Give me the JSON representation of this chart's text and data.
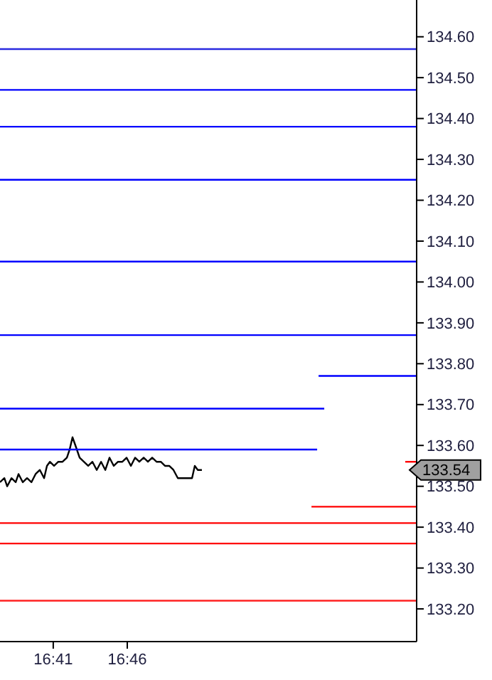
{
  "chart_data": {
    "type": "line",
    "x": [
      16.6233,
      16.6282,
      16.6314,
      16.6362,
      16.641,
      16.6442,
      16.649,
      16.6538,
      16.6587,
      16.6634,
      16.6682,
      16.673,
      16.6762,
      16.6795,
      16.6842,
      16.689,
      16.6938,
      16.6987,
      16.7018,
      16.705,
      16.7083,
      16.713,
      16.7178,
      16.7227,
      16.7275,
      16.7323,
      16.7372,
      16.742,
      16.7467,
      16.7515,
      16.7563,
      16.7612,
      16.766,
      16.7708,
      16.7755,
      16.7803,
      16.7852,
      16.79,
      16.7948,
      16.7997,
      16.8045,
      16.8092,
      16.814,
      16.8188,
      16.8237,
      16.8285,
      16.8333,
      16.8397,
      16.8428,
      16.8462,
      16.8508
    ],
    "series": [
      {
        "color": "#000000",
        "values": [
          133.51,
          133.52,
          133.5,
          133.52,
          133.51,
          133.53,
          133.51,
          133.52,
          133.51,
          133.53,
          133.54,
          133.52,
          133.55,
          133.56,
          133.55,
          133.56,
          133.56,
          133.57,
          133.59,
          133.62,
          133.6,
          133.57,
          133.56,
          133.55,
          133.56,
          133.54,
          133.56,
          133.54,
          133.57,
          133.55,
          133.56,
          133.56,
          133.57,
          133.55,
          133.57,
          133.56,
          133.57,
          133.56,
          133.57,
          133.56,
          133.56,
          133.55,
          133.55,
          133.54,
          133.52,
          133.52,
          133.52,
          133.52,
          133.55,
          133.54,
          133.54
        ]
      },
      {
        "type": "line",
        "color": "#0000ff",
        "x": [
          16.9823,
          17.0928
        ],
        "values": [
          133.77,
          133.77
        ]
      },
      {
        "type": "line",
        "color": "#0000ff",
        "x": [
          16.6233,
          16.9887
        ],
        "values": [
          133.69,
          133.69
        ]
      },
      {
        "type": "line",
        "color": "#0000ff",
        "x": [
          16.6233,
          16.9807
        ],
        "values": [
          133.59,
          133.59
        ]
      },
      {
        "type": "line",
        "color": "#ff0000",
        "x": [
          16.9743,
          17.0928
        ],
        "values": [
          133.45,
          133.45
        ]
      },
      {
        "type": "line",
        "color": "#ff0000",
        "x": [
          17.08,
          17.0928
        ],
        "values": [
          133.56,
          133.56
        ]
      }
    ],
    "ref_lines": [
      {
        "axis": "y",
        "value": 134.57,
        "color": "#2a2ae0"
      },
      {
        "axis": "y",
        "value": 134.47,
        "color": "#0000ff"
      },
      {
        "axis": "y",
        "value": 134.38,
        "color": "#0000ff"
      },
      {
        "axis": "y",
        "value": 134.25,
        "color": "#0000ff"
      },
      {
        "axis": "y",
        "value": 134.05,
        "color": "#0000ff"
      },
      {
        "axis": "y",
        "value": 133.87,
        "color": "#0000ff"
      },
      {
        "axis": "y",
        "value": 133.41,
        "color": "#ff0000"
      },
      {
        "axis": "y",
        "value": 133.36,
        "color": "#ff0000"
      },
      {
        "axis": "y",
        "value": 133.22,
        "color": "#ff2020"
      }
    ],
    "annotations": [
      "133.54"
    ],
    "xlim": [
      16.6233,
      17.0928
    ],
    "xticks": [
      {
        "value": 16.6833,
        "label": "16:41"
      },
      {
        "value": 16.7667,
        "label": "16:46"
      }
    ],
    "ylim": [
      133.12,
      134.69
    ],
    "yticks": [
      {
        "value": 133.2,
        "label": "133.20"
      },
      {
        "value": 133.3,
        "label": "133.30"
      },
      {
        "value": 133.4,
        "label": "133.40"
      },
      {
        "value": 133.5,
        "label": "133.50"
      },
      {
        "value": 133.6,
        "label": "133.60"
      },
      {
        "value": 133.7,
        "label": "133.70"
      },
      {
        "value": 133.8,
        "label": "133.80"
      },
      {
        "value": 133.9,
        "label": "133.90"
      },
      {
        "value": 134.0,
        "label": "134.00"
      },
      {
        "value": 134.1,
        "label": "134.10"
      },
      {
        "value": 134.2,
        "label": "134.20"
      },
      {
        "value": 134.3,
        "label": "134.30"
      },
      {
        "value": 134.4,
        "label": "134.40"
      },
      {
        "value": 134.5,
        "label": "134.50"
      },
      {
        "value": 134.6,
        "label": "134.60"
      }
    ],
    "grid": false,
    "marker": "none",
    "line_style": "solid"
  }
}
